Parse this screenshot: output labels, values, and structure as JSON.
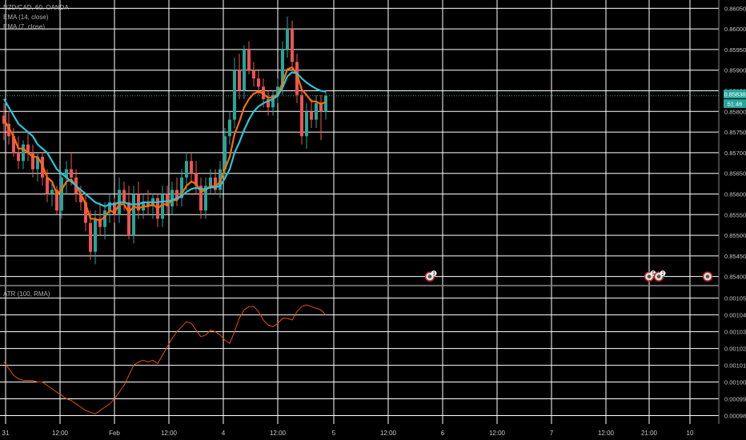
{
  "legend": {
    "symbol": "NZD/CAD, 60, OANDA",
    "ema_fast": "EMA (14, close)",
    "ema_slow": "EMA (7, close)",
    "atr": "ATR (100, RMA)"
  },
  "price_badges": {
    "last_price": "0.85838",
    "countdown": "51:46"
  },
  "colors": {
    "background": "#000000",
    "grid": "#ffffff",
    "up": "#26a69a",
    "down": "#ef5350",
    "ema_fast": "#26c6da",
    "ema_slow": "#ff6d00",
    "atr": "#e65100",
    "badge": "#26a69a"
  },
  "chart_data": [
    {
      "type": "candlestick",
      "name": "price",
      "y_ticks": [
        0.854,
        0.8545,
        0.855,
        0.8555,
        0.856,
        0.8565,
        0.857,
        0.8575,
        0.858,
        0.8585,
        0.859,
        0.8595,
        0.86,
        0.8605
      ],
      "y_tick_labels": [
        "0.85400",
        "0.85450",
        "0.85500",
        "0.85550",
        "0.85600",
        "0.85650",
        "0.85700",
        "0.85750",
        "0.85800",
        "0.85850",
        "0.85900",
        "0.85950",
        "0.86000",
        "0.86050"
      ],
      "ylim": [
        0.8538,
        0.8607
      ],
      "candles": [
        [
          0.8579,
          0.8582,
          0.8573,
          0.8577
        ],
        [
          0.8577,
          0.858,
          0.8572,
          0.8574
        ],
        [
          0.8574,
          0.8576,
          0.8569,
          0.857
        ],
        [
          0.857,
          0.8574,
          0.8566,
          0.8568
        ],
        [
          0.8568,
          0.8573,
          0.8566,
          0.8572
        ],
        [
          0.8572,
          0.8575,
          0.8568,
          0.857
        ],
        [
          0.857,
          0.8572,
          0.8564,
          0.8566
        ],
        [
          0.8566,
          0.857,
          0.8563,
          0.8569
        ],
        [
          0.8569,
          0.857,
          0.8562,
          0.8564
        ],
        [
          0.8564,
          0.8566,
          0.8558,
          0.856
        ],
        [
          0.856,
          0.8563,
          0.8557,
          0.8561
        ],
        [
          0.8561,
          0.8562,
          0.8555,
          0.8556
        ],
        [
          0.8556,
          0.8565,
          0.8554,
          0.8564
        ],
        [
          0.8564,
          0.8568,
          0.856,
          0.8566
        ],
        [
          0.8566,
          0.857,
          0.8562,
          0.8564
        ],
        [
          0.8564,
          0.8566,
          0.8558,
          0.856
        ],
        [
          0.856,
          0.8562,
          0.8556,
          0.8558
        ],
        [
          0.8558,
          0.856,
          0.8551,
          0.8553
        ],
        [
          0.8553,
          0.8556,
          0.8544,
          0.8546
        ],
        [
          0.8546,
          0.8556,
          0.8543,
          0.8554
        ],
        [
          0.8554,
          0.8558,
          0.855,
          0.8552
        ],
        [
          0.8552,
          0.8558,
          0.8549,
          0.8556
        ],
        [
          0.8556,
          0.856,
          0.8553,
          0.8558
        ],
        [
          0.8558,
          0.8559,
          0.8553,
          0.8555
        ],
        [
          0.8555,
          0.8564,
          0.8553,
          0.8561
        ],
        [
          0.8561,
          0.8563,
          0.8556,
          0.8558
        ],
        [
          0.8558,
          0.8562,
          0.8549,
          0.855
        ],
        [
          0.855,
          0.8562,
          0.8548,
          0.856
        ],
        [
          0.856,
          0.8563,
          0.8554,
          0.8556
        ],
        [
          0.8556,
          0.856,
          0.8554,
          0.8558
        ],
        [
          0.8558,
          0.8561,
          0.8555,
          0.8557
        ],
        [
          0.8557,
          0.856,
          0.8554,
          0.8559
        ],
        [
          0.8559,
          0.856,
          0.8552,
          0.8554
        ],
        [
          0.8554,
          0.8562,
          0.8552,
          0.856
        ],
        [
          0.856,
          0.8562,
          0.8555,
          0.8557
        ],
        [
          0.8557,
          0.8563,
          0.8555,
          0.8561
        ],
        [
          0.8561,
          0.8564,
          0.8557,
          0.8559
        ],
        [
          0.8559,
          0.8566,
          0.8557,
          0.8564
        ],
        [
          0.8564,
          0.857,
          0.8561,
          0.8568
        ],
        [
          0.8568,
          0.857,
          0.8563,
          0.8565
        ],
        [
          0.8565,
          0.8568,
          0.856,
          0.8562
        ],
        [
          0.8562,
          0.8564,
          0.8554,
          0.8556
        ],
        [
          0.8556,
          0.8564,
          0.8554,
          0.8562
        ],
        [
          0.8562,
          0.8566,
          0.856,
          0.8564
        ],
        [
          0.8564,
          0.8566,
          0.856,
          0.8561
        ],
        [
          0.8561,
          0.8568,
          0.8559,
          0.8566
        ],
        [
          0.8566,
          0.8576,
          0.8564,
          0.8574
        ],
        [
          0.8574,
          0.858,
          0.8572,
          0.8578
        ],
        [
          0.8578,
          0.8593,
          0.8576,
          0.859
        ],
        [
          0.859,
          0.8594,
          0.8583,
          0.8585
        ],
        [
          0.8585,
          0.8596,
          0.8583,
          0.8595
        ],
        [
          0.8595,
          0.8597,
          0.8589,
          0.859
        ],
        [
          0.859,
          0.8592,
          0.8586,
          0.8588
        ],
        [
          0.8588,
          0.859,
          0.8584,
          0.8586
        ],
        [
          0.8586,
          0.8588,
          0.8581,
          0.8583
        ],
        [
          0.8583,
          0.8585,
          0.8579,
          0.8581
        ],
        [
          0.8581,
          0.8585,
          0.8579,
          0.8584
        ],
        [
          0.8584,
          0.8588,
          0.8582,
          0.8586
        ],
        [
          0.8586,
          0.8597,
          0.8584,
          0.8595
        ],
        [
          0.8595,
          0.8603,
          0.8593,
          0.86
        ],
        [
          0.86,
          0.8602,
          0.859,
          0.8592
        ],
        [
          0.8592,
          0.8594,
          0.8582,
          0.8584
        ],
        [
          0.8584,
          0.8586,
          0.8572,
          0.8574
        ],
        [
          0.8574,
          0.8582,
          0.8571,
          0.858
        ],
        [
          0.858,
          0.8583,
          0.8576,
          0.8578
        ],
        [
          0.8578,
          0.8584,
          0.8576,
          0.8582
        ],
        [
          0.8582,
          0.8584,
          0.8573,
          0.858
        ],
        [
          0.858,
          0.8585,
          0.8578,
          0.85838
        ]
      ],
      "ema_fast": [
        0.8583,
        0.8581,
        0.8579,
        0.8577,
        0.8576,
        0.8575,
        0.8574,
        0.8572,
        0.8571,
        0.857,
        0.8568,
        0.8566,
        0.8565,
        0.8564,
        0.8563,
        0.8562,
        0.8561,
        0.856,
        0.8559,
        0.8558,
        0.85575,
        0.8557,
        0.85575,
        0.85575,
        0.8558,
        0.8558,
        0.85575,
        0.85575,
        0.85575,
        0.8558,
        0.8558,
        0.8558,
        0.8558,
        0.85582,
        0.85582,
        0.85585,
        0.8559,
        0.85595,
        0.85605,
        0.85612,
        0.85615,
        0.85612,
        0.85612,
        0.85616,
        0.85616,
        0.8562,
        0.85638,
        0.8566,
        0.857,
        0.85725,
        0.85755,
        0.8578,
        0.858,
        0.85812,
        0.8582,
        0.85825,
        0.8583,
        0.85838,
        0.85858,
        0.85885,
        0.85895,
        0.85892,
        0.8588,
        0.8587,
        0.85862,
        0.85855,
        0.8585,
        0.85848
      ],
      "ema_slow": [
        0.8578,
        0.8576,
        0.8574,
        0.8571,
        0.8571,
        0.857,
        0.8569,
        0.8569,
        0.8567,
        0.8564,
        0.8563,
        0.856,
        0.8561,
        0.8563,
        0.85635,
        0.8562,
        0.856,
        0.85575,
        0.8554,
        0.8554,
        0.85535,
        0.85545,
        0.8556,
        0.85555,
        0.85575,
        0.85575,
        0.85555,
        0.8557,
        0.85565,
        0.8557,
        0.8557,
        0.85575,
        0.85565,
        0.85575,
        0.85575,
        0.85585,
        0.85585,
        0.856,
        0.8562,
        0.8563,
        0.85625,
        0.85605,
        0.8561,
        0.8562,
        0.85618,
        0.8563,
        0.8566,
        0.8569,
        0.85745,
        0.85775,
        0.8581,
        0.8583,
        0.85843,
        0.85848,
        0.85843,
        0.85833,
        0.85835,
        0.85841,
        0.8587,
        0.85902,
        0.85907,
        0.8589,
        0.85853,
        0.8584,
        0.85825,
        0.85824,
        0.85818,
        0.85823
      ]
    },
    {
      "type": "line",
      "name": "atr",
      "y_ticks": [
        0.00098,
        0.00099,
        0.001,
        0.00101,
        0.00102,
        0.00103,
        0.00104,
        0.00105
      ],
      "y_tick_labels": [
        "0.00098",
        "0.00099",
        "0.00100",
        "0.00101",
        "0.00102",
        "0.00103",
        "0.00104",
        "0.00105"
      ],
      "ylim": [
        0.000975,
        0.001057
      ],
      "values": [
        0.001012,
        0.001008,
        0.001004,
        0.001002,
        0.001001,
        0.001001,
        0.001001,
        0.001,
        0.001,
        0.000998,
        0.000996,
        0.000994,
        0.000992,
        0.00099,
        0.000989,
        0.000987,
        0.000985,
        0.000983,
        0.000982,
        0.000981,
        0.000983,
        0.000985,
        0.000987,
        0.00099,
        0.000994,
        0.000998,
        0.001004,
        0.00101,
        0.001012,
        0.001013,
        0.001012,
        0.001013,
        0.001011,
        0.001016,
        0.001021,
        0.001026,
        0.00103,
        0.001033,
        0.001036,
        0.001035,
        0.001031,
        0.001027,
        0.001028,
        0.001031,
        0.00103,
        0.001028,
        0.001025,
        0.001023,
        0.00103,
        0.001038,
        0.001043,
        0.001045,
        0.001045,
        0.001042,
        0.001037,
        0.001034,
        0.001033,
        0.001035,
        0.001038,
        0.001038,
        0.001037,
        0.001042,
        0.001045,
        0.001046,
        0.001045,
        0.001044,
        0.001043,
        0.00104
      ]
    }
  ],
  "x_axis": {
    "labels": [
      "31",
      "12:00",
      "Feb",
      "12:00",
      "4",
      "12:00",
      "5",
      "12:00",
      "6",
      "12:00",
      "7",
      "12:00",
      "21:00",
      "10"
    ]
  },
  "event_markers": {
    "labels": [
      "3",
      "5",
      "2"
    ]
  }
}
